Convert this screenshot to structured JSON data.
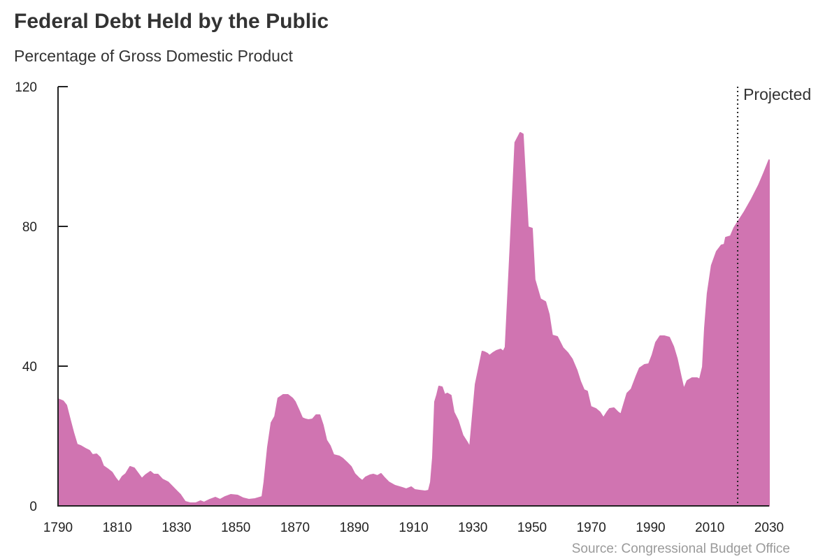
{
  "chart_data": {
    "type": "area",
    "title": "Federal Debt Held by the Public",
    "subtitle": "Percentage of Gross Domestic Product",
    "source": "Source: Congressional Budget Office",
    "xlabel": "",
    "ylabel": "",
    "xlim": [
      1790,
      2030
    ],
    "ylim": [
      0,
      120
    ],
    "grid": false,
    "x_ticks": [
      1790,
      1810,
      1830,
      1850,
      1870,
      1890,
      1910,
      1930,
      1950,
      1970,
      1990,
      2010,
      2030
    ],
    "y_ticks": [
      0,
      40,
      80,
      120
    ],
    "annotation": {
      "label": "Projected",
      "x": 2019.4
    },
    "fill_color": "#d074b1",
    "x": [
      1790.0,
      1791.7,
      1792.8,
      1794.0,
      1795.2,
      1796.4,
      1797.6,
      1799.2,
      1800.6,
      1801.6,
      1803.0,
      1804.2,
      1805.3,
      1807.0,
      1808.2,
      1809.4,
      1810.5,
      1811.7,
      1812.9,
      1814.3,
      1815.7,
      1817.1,
      1818.3,
      1819.5,
      1821.2,
      1822.3,
      1823.7,
      1825.2,
      1827.1,
      1829.4,
      1831.3,
      1832.9,
      1834.6,
      1836.5,
      1838.1,
      1839.3,
      1841.2,
      1843.1,
      1844.7,
      1846.4,
      1848.3,
      1850.6,
      1852.5,
      1854.4,
      1856.5,
      1858.9,
      1859.6,
      1860.8,
      1862.0,
      1863.2,
      1864.3,
      1866.0,
      1867.6,
      1869.1,
      1870.0,
      1871.4,
      1872.4,
      1873.5,
      1874.5,
      1875.9,
      1877.1,
      1878.3,
      1879.4,
      1880.6,
      1881.8,
      1883.0,
      1884.9,
      1886.0,
      1887.5,
      1888.9,
      1890.1,
      1891.5,
      1892.7,
      1893.8,
      1895.3,
      1896.4,
      1897.8,
      1899.0,
      1900.2,
      1901.6,
      1903.7,
      1906.1,
      1907.5,
      1909.2,
      1910.4,
      1912.0,
      1913.9,
      1915.1,
      1915.8,
      1916.5,
      1917.2,
      1917.9,
      1918.6,
      1919.6,
      1920.5,
      1921.4,
      1922.6,
      1923.6,
      1925.0,
      1926.6,
      1928.1,
      1929.0,
      1930.9,
      1933.2,
      1934.0,
      1934.9,
      1935.6,
      1936.8,
      1938.0,
      1939.4,
      1940.3,
      1941.0,
      1942.7,
      1944.3,
      1946.0,
      1946.9,
      1948.6,
      1950.0,
      1950.9,
      1952.8,
      1954.5,
      1955.7,
      1956.8,
      1958.5,
      1960.4,
      1962.0,
      1963.5,
      1965.1,
      1966.3,
      1967.5,
      1968.6,
      1969.8,
      1971.5,
      1972.9,
      1974.1,
      1975.3,
      1976.2,
      1977.6,
      1979.0,
      1980.0,
      1980.9,
      1982.1,
      1983.5,
      1985.2,
      1986.3,
      1988.0,
      1989.4,
      1990.6,
      1991.8,
      1993.2,
      1994.6,
      1996.3,
      1997.7,
      1998.9,
      2000.3,
      2001.2,
      2002.4,
      2004.0,
      2005.7,
      2006.6,
      2007.6,
      2008.3,
      2009.2,
      2010.6,
      2012.3,
      2013.9,
      2014.9,
      2015.4,
      2017.0,
      2018.2,
      2019.4,
      2021.7,
      2024.1,
      2026.5,
      2028.2,
      2030.0
    ],
    "y": [
      30.6,
      30,
      28.8,
      24.8,
      21,
      17.6,
      17.2,
      16.4,
      15.8,
      14.6,
      14.8,
      13.8,
      11.4,
      10.4,
      9.6,
      8,
      6.8,
      8.4,
      9.2,
      11.2,
      10.8,
      9.2,
      7.8,
      8.8,
      9.8,
      9,
      9,
      7.6,
      6.8,
      4.8,
      3.2,
      1.2,
      0.8,
      0.8,
      1.4,
      1,
      1.8,
      2.4,
      1.8,
      2.6,
      3.2,
      3,
      2.2,
      1.8,
      2,
      2.6,
      6.8,
      16.8,
      23.8,
      25.6,
      30.8,
      31.8,
      31.8,
      30.8,
      29.8,
      27.2,
      25.2,
      24.8,
      24.6,
      24.8,
      26,
      26,
      23.2,
      18.8,
      17.2,
      14.6,
      14.2,
      13.6,
      12.4,
      11.2,
      9.2,
      8,
      7.2,
      8.2,
      8.8,
      9,
      8.6,
      9.2,
      8,
      6.8,
      5.8,
      5.2,
      4.8,
      5.4,
      4.6,
      4.4,
      4.2,
      4.4,
      6.8,
      13.8,
      29.8,
      31.8,
      34.2,
      34,
      31.8,
      32.2,
      31.6,
      26.8,
      24.4,
      20.2,
      18.2,
      16.8,
      34.8,
      44.2,
      44,
      43.6,
      43,
      43.8,
      44.4,
      44.8,
      44.2,
      45.4,
      75,
      104,
      106.8,
      106.4,
      79.8,
      79.4,
      64.8,
      59.2,
      58.4,
      54.8,
      48.8,
      48.4,
      45.2,
      43.8,
      42,
      38.8,
      35.6,
      33.2,
      32.8,
      28.4,
      27.8,
      26.8,
      25.2,
      26.8,
      27.8,
      28,
      26.8,
      26.2,
      28.8,
      32.2,
      33.4,
      37.2,
      39.4,
      40.4,
      40.6,
      43.2,
      46.8,
      48.6,
      48.6,
      48.2,
      45.6,
      42.2,
      36.8,
      33.4,
      35.8,
      36.6,
      36.6,
      36.2,
      39.8,
      50.8,
      60.8,
      68.8,
      72.8,
      74.6,
      74.8,
      76.8,
      77.2,
      79.6,
      81.2,
      84.2,
      87.8,
      91.8,
      95.2,
      99
    ]
  }
}
